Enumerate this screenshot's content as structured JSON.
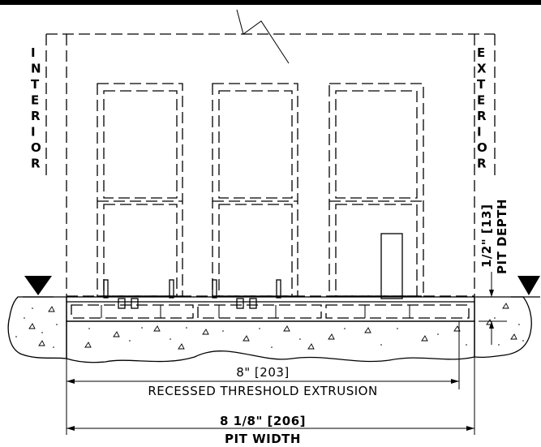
{
  "labels": {
    "interior": "INTERIOR",
    "exterior": "EXTERIOR",
    "pit_depth_value": "1/2\" [13]",
    "pit_depth_label": "PIT DEPTH",
    "extrusion_value": "8\"  [203]",
    "extrusion_label": "RECESSED THRESHOLD EXTRUSION",
    "pit_width_value": "8 1/8\"  [206]",
    "pit_width_label": "PIT WIDTH"
  },
  "colors": {
    "line": "#000000",
    "background": "#ffffff"
  }
}
